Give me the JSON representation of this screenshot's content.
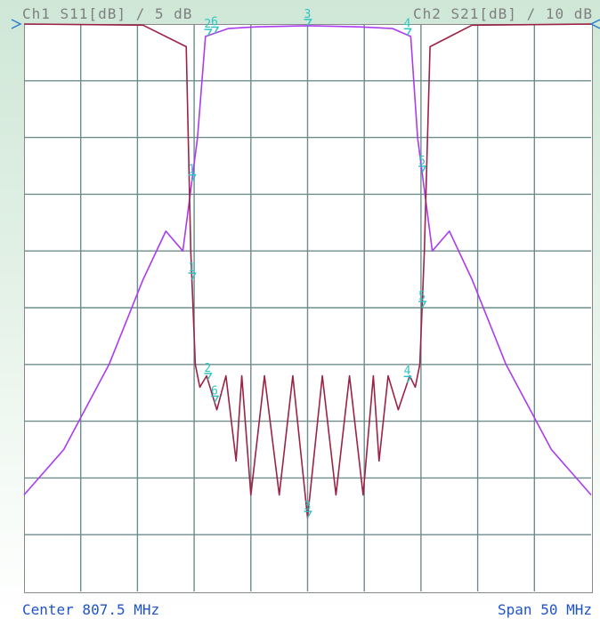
{
  "header": {
    "ch1_label": "Ch1 S11[dB] / 5 dB",
    "ch2_label": "Ch2 S21[dB] / 10 dB"
  },
  "footer": {
    "center_label": "Center 807.5 MHz",
    "span_label": "Span 50 MHz"
  },
  "colors": {
    "s11": "#9b2346",
    "s21": "#aa3cf0",
    "grid": "#6d8d8d",
    "marker": "#2ec4c4"
  },
  "chart_data": {
    "type": "line",
    "title": "",
    "xlabel": "",
    "ylabel": "",
    "center_mhz": 807.5,
    "span_mhz": 50,
    "xlim": [
      782.5,
      832.5
    ],
    "grid": true,
    "grid_divisions": [
      10,
      10
    ],
    "series": [
      {
        "name": "Ch1 S11[dB] / 5 dB",
        "ylim": [
          -50,
          0
        ],
        "x": [
          782.5,
          793.0,
          796.8,
          797.2,
          797.6,
          798.0,
          798.6,
          799.5,
          800.3,
          801.2,
          801.7,
          802.5,
          803.7,
          805.0,
          806.2,
          807.5,
          808.8,
          810.0,
          811.2,
          812.4,
          813.3,
          813.8,
          814.6,
          815.5,
          816.5,
          817.0,
          817.4,
          817.8,
          818.3,
          822.0,
          832.5
        ],
        "y": [
          0.0,
          -0.1,
          -2.0,
          -20.0,
          -30.0,
          -32.0,
          -31.0,
          -34.0,
          -31.0,
          -38.5,
          -31.0,
          -41.5,
          -31.0,
          -41.5,
          -31.0,
          -43.5,
          -31.0,
          -41.5,
          -31.0,
          -41.5,
          -31.0,
          -38.5,
          -31.0,
          -34.0,
          -31.0,
          -32.0,
          -30.0,
          -20.0,
          -2.0,
          -0.1,
          0.0
        ]
      },
      {
        "name": "Ch2 S21[dB] / 10 dB",
        "ylim": [
          -100,
          0
        ],
        "x": [
          782.5,
          786.0,
          790.0,
          793.0,
          795.0,
          796.5,
          797.8,
          798.5,
          800.5,
          803.0,
          807.5,
          812.0,
          815.0,
          816.6,
          817.2,
          818.5,
          820.0,
          822.0,
          825.0,
          829.0,
          832.5
        ],
        "y": [
          -83.0,
          -75.0,
          -60.0,
          -45.0,
          -36.5,
          -40.0,
          -20.0,
          -2.2,
          -0.8,
          -0.5,
          -0.3,
          -0.5,
          -0.8,
          -2.2,
          -20.0,
          -40.0,
          -36.5,
          -45.0,
          -60.0,
          -75.0,
          -83.0
        ]
      }
    ],
    "markers": [
      {
        "label": "1",
        "x": 797.3
      },
      {
        "label": "2",
        "x": 798.7
      },
      {
        "label": "3",
        "x": 807.5
      },
      {
        "label": "4",
        "x": 816.3
      },
      {
        "label": "5",
        "x": 817.6
      },
      {
        "label": "6",
        "x": 799.3
      }
    ]
  }
}
